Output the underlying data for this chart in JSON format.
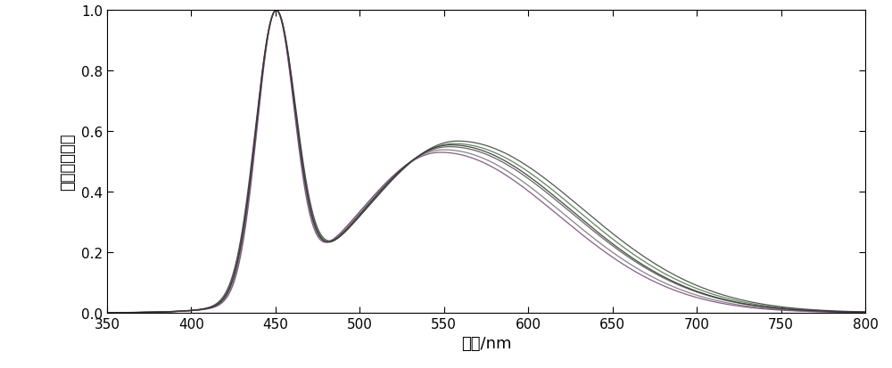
{
  "xlim": [
    350,
    800
  ],
  "ylim": [
    0,
    1.0
  ],
  "xticks": [
    350,
    400,
    450,
    500,
    550,
    600,
    650,
    700,
    750,
    800
  ],
  "yticks": [
    0,
    0.2,
    0.4,
    0.6,
    0.8,
    1.0
  ],
  "xlabel": "波长/nm",
  "ylabel": "相对光谱强度",
  "bg_color": "#ffffff",
  "line_colors": [
    "#555555",
    "#4a7a4a",
    "#777777",
    "#444444",
    "#7a4a7a",
    "#333333"
  ],
  "n_curves": 6,
  "blue_peak_nm": 450,
  "blue_widths": [
    11.5,
    11.8,
    11.2,
    12.0,
    11.0,
    11.6
  ],
  "yellow_peak_centers": [
    553,
    556,
    550,
    558,
    548,
    554
  ],
  "yellow_peak_amps": [
    0.595,
    0.605,
    0.585,
    0.615,
    0.575,
    0.6
  ],
  "yellow_left_widths": [
    52,
    53,
    51,
    54,
    50,
    52
  ],
  "yellow_right_widths": [
    72,
    73,
    71,
    74,
    70,
    72
  ]
}
